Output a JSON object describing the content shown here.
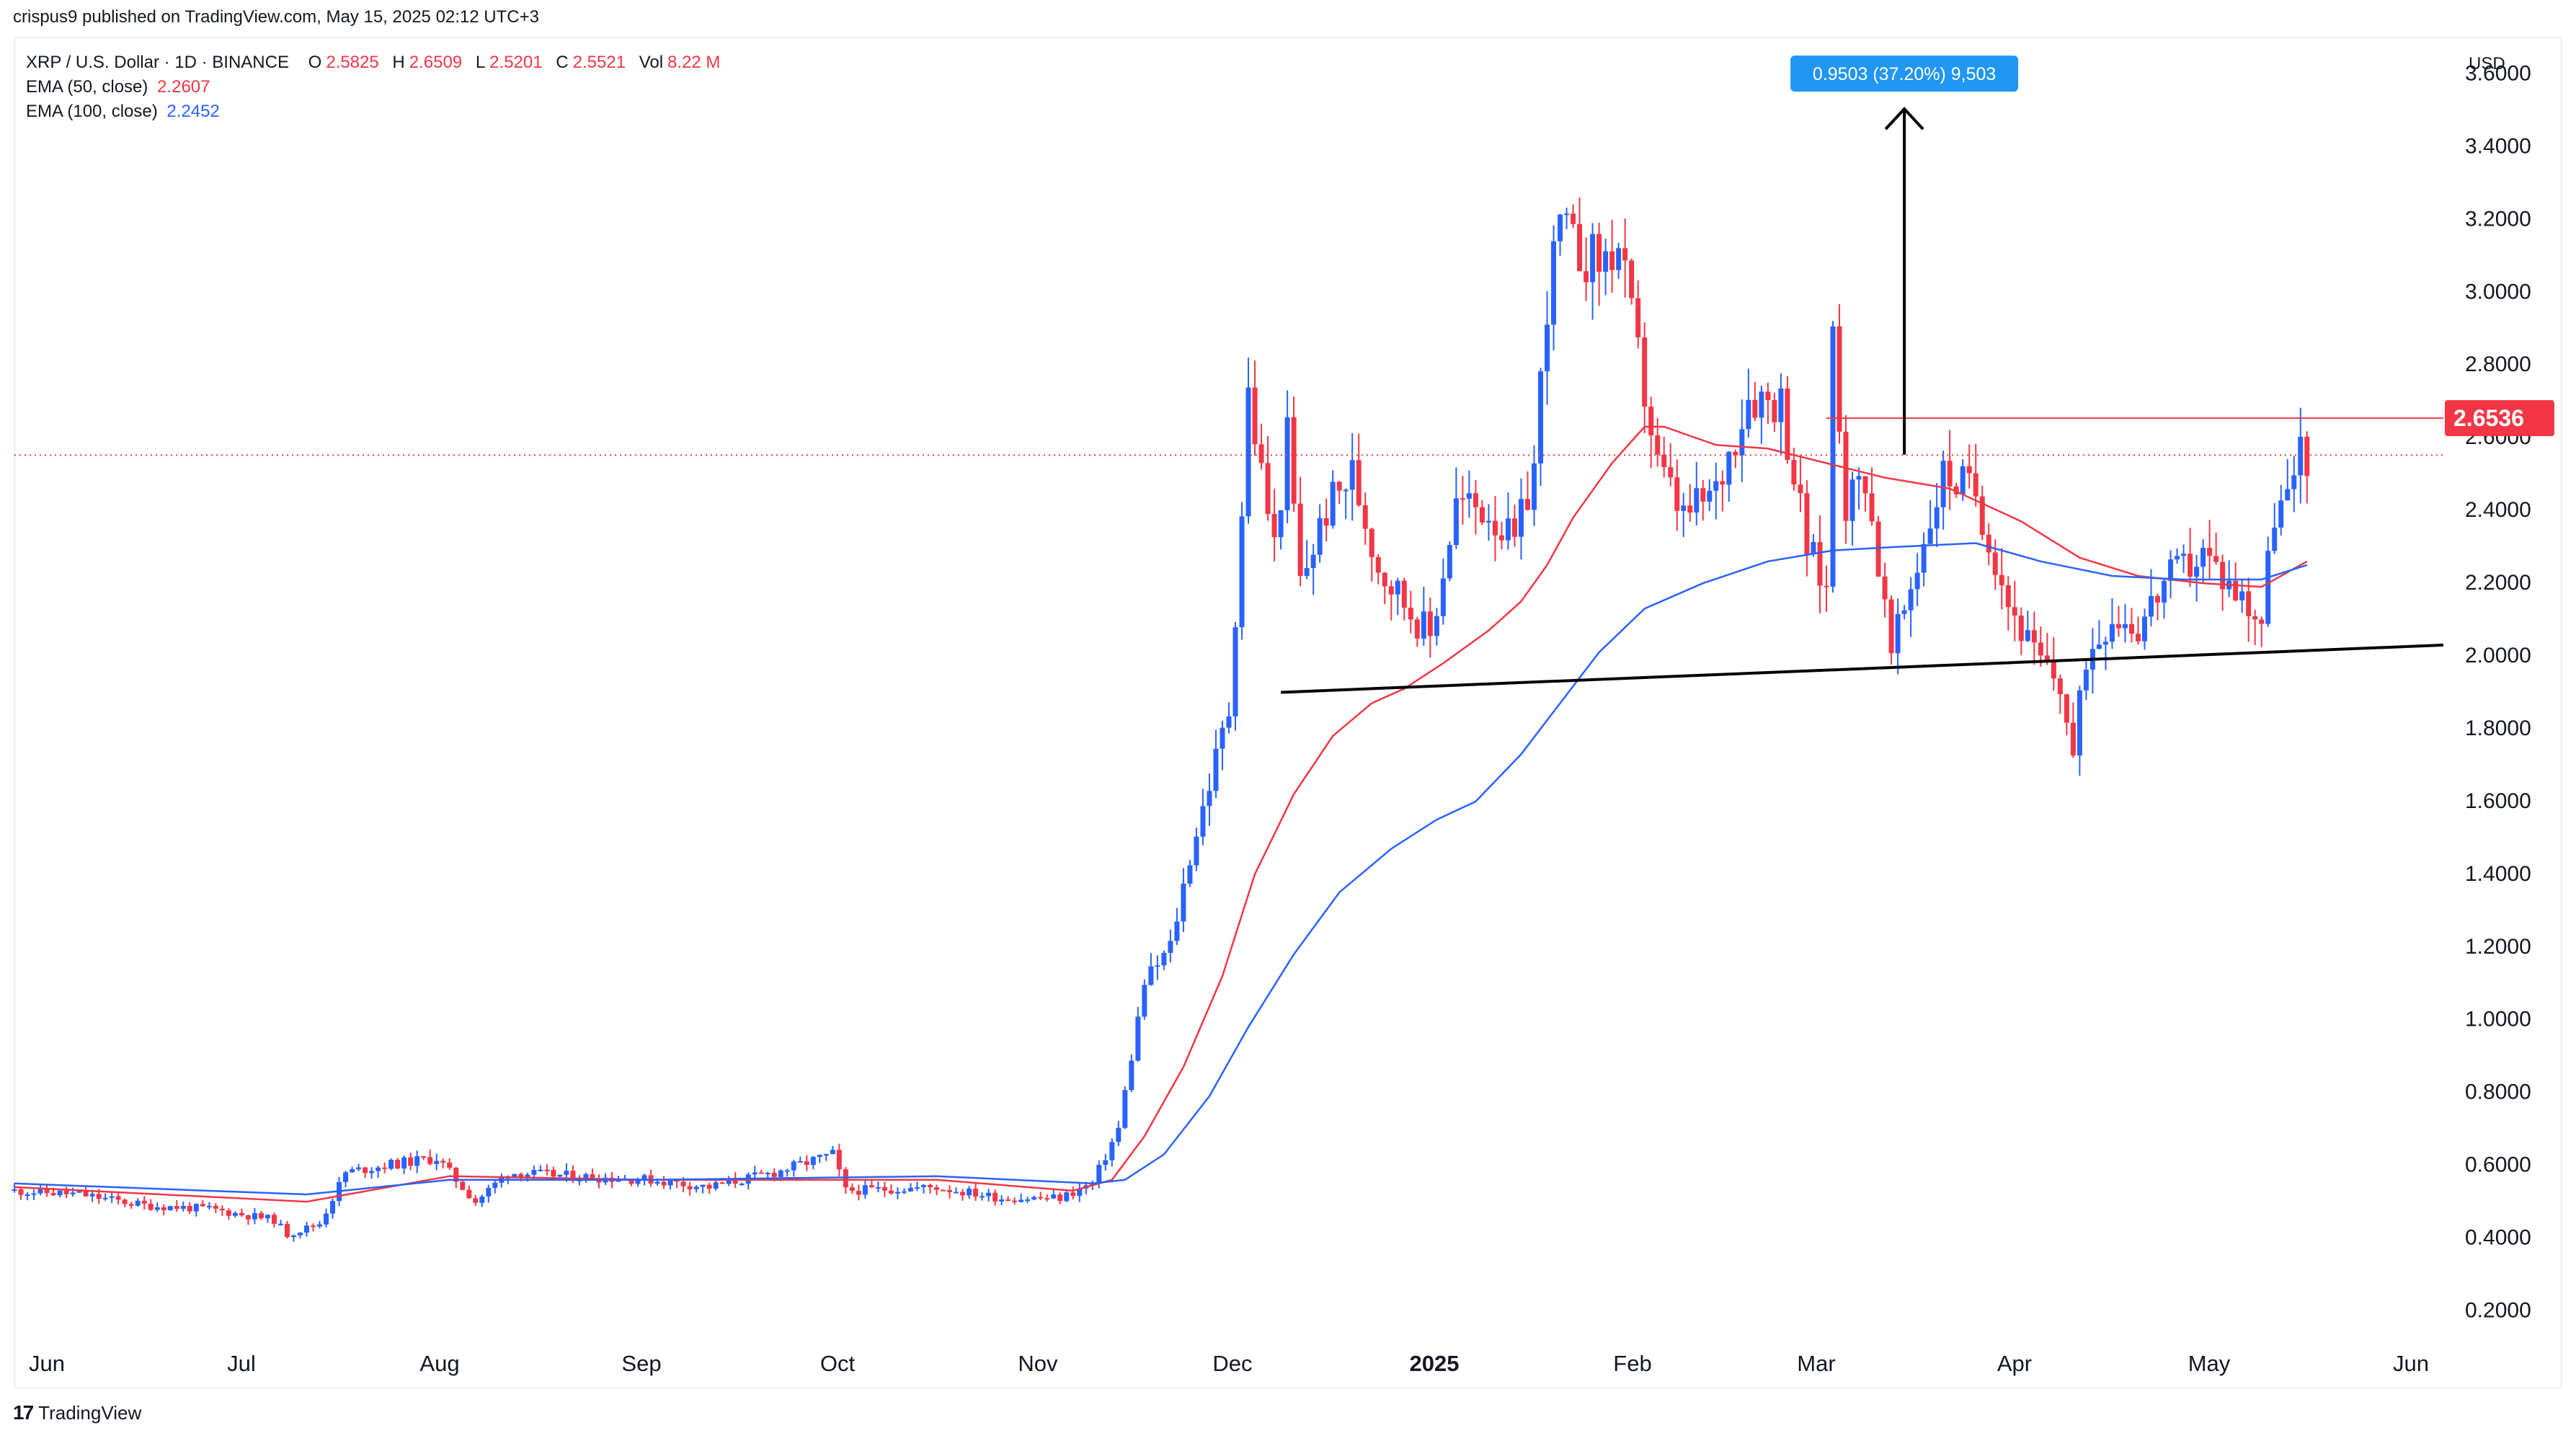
{
  "header": {
    "published": "crispus9 published on TradingView.com, May 15, 2025 02:12 UTC+3"
  },
  "legend": {
    "symbol": "XRP / U.S. Dollar · 1D · BINANCE",
    "o_label": "O",
    "o": "2.5825",
    "h_label": "H",
    "h": "2.6509",
    "l_label": "L",
    "l": "2.5201",
    "c_label": "C",
    "c": "2.5521",
    "vol_label": "Vol",
    "vol": "8.22 M",
    "ema50_label": "EMA (50, close)",
    "ema50": "2.2607",
    "ema100_label": "EMA (100, close)",
    "ema100": "2.2452"
  },
  "footer": {
    "brand": "TradingView",
    "logo": "17"
  },
  "colors": {
    "up": "#2962ff",
    "down": "#f23645",
    "ema50": "#f23645",
    "ema100": "#2962ff",
    "grid": "#ffffff",
    "resistance": "#f23645",
    "support": "#000000",
    "measure_bg": "#2196f3"
  },
  "chart_data": {
    "type": "candlestick",
    "title": "XRP / U.S. Dollar · 1D · BINANCE",
    "currency_label": "USD",
    "y_ticks": [
      "3.6000",
      "3.4000",
      "3.2000",
      "3.0000",
      "2.8000",
      "2.6000",
      "2.4000",
      "2.2000",
      "2.0000",
      "1.8000",
      "1.6000",
      "1.4000",
      "1.2000",
      "1.0000",
      "0.8000",
      "0.6000",
      "0.4000",
      "0.2000"
    ],
    "x_ticks": [
      "Jun",
      "Jul",
      "Aug",
      "Sep",
      "Oct",
      "Nov",
      "Dec",
      "2025",
      "Feb",
      "Mar",
      "Apr",
      "May",
      "Jun"
    ],
    "x_range": [
      "2024-05-26",
      "2025-06-04"
    ],
    "y_range": [
      0.09,
      3.7
    ],
    "last_price": 2.5521,
    "price_label": "2.6536",
    "resistance": {
      "value": 2.6536,
      "from": "2025-03-01",
      "to": "2025-06-04"
    },
    "support_line": {
      "from": [
        "2024-12-07",
        1.9
      ],
      "to": [
        "2025-06-04",
        2.03
      ]
    },
    "measure": {
      "label": "0.9503 (37.20%) 9,503",
      "date": "2025-03-13",
      "from": 2.5533,
      "to": 3.5036
    },
    "closes": [
      [
        "2024-05-26",
        0.53
      ],
      [
        "2024-06-05",
        0.52
      ],
      [
        "2024-06-15",
        0.49
      ],
      [
        "2024-06-25",
        0.48
      ],
      [
        "2024-07-05",
        0.45
      ],
      [
        "2024-07-07",
        0.41
      ],
      [
        "2024-07-12",
        0.44
      ],
      [
        "2024-07-16",
        0.58
      ],
      [
        "2024-07-22",
        0.6
      ],
      [
        "2024-07-30",
        0.62
      ],
      [
        "2024-08-05",
        0.5
      ],
      [
        "2024-08-10",
        0.58
      ],
      [
        "2024-08-20",
        0.57
      ],
      [
        "2024-09-01",
        0.56
      ],
      [
        "2024-09-10",
        0.54
      ],
      [
        "2024-09-20",
        0.58
      ],
      [
        "2024-09-29",
        0.63
      ],
      [
        "2024-10-01",
        0.53
      ],
      [
        "2024-10-15",
        0.54
      ],
      [
        "2024-10-25",
        0.51
      ],
      [
        "2024-11-03",
        0.51
      ],
      [
        "2024-11-08",
        0.55
      ],
      [
        "2024-11-12",
        0.7
      ],
      [
        "2024-11-16",
        1.1
      ],
      [
        "2024-11-20",
        1.2
      ],
      [
        "2024-11-23",
        1.45
      ],
      [
        "2024-11-29",
        1.85
      ],
      [
        "2024-12-01",
        2.4
      ],
      [
        "2024-12-02",
        2.72
      ],
      [
        "2024-12-04",
        2.5
      ],
      [
        "2024-12-06",
        2.3
      ],
      [
        "2024-12-08",
        2.6
      ],
      [
        "2024-12-10",
        2.2
      ],
      [
        "2024-12-14",
        2.4
      ],
      [
        "2024-12-18",
        2.5
      ],
      [
        "2024-12-22",
        2.25
      ],
      [
        "2024-12-26",
        2.15
      ],
      [
        "2024-12-30",
        2.05
      ],
      [
        "2025-01-03",
        2.42
      ],
      [
        "2025-01-08",
        2.4
      ],
      [
        "2025-01-12",
        2.3
      ],
      [
        "2025-01-15",
        2.52
      ],
      [
        "2025-01-17",
        2.98
      ],
      [
        "2025-01-19",
        3.18
      ],
      [
        "2025-01-21",
        3.12
      ],
      [
        "2025-01-25",
        3.08
      ],
      [
        "2025-01-28",
        3.12
      ],
      [
        "2025-02-01",
        2.72
      ],
      [
        "2025-02-03",
        2.52
      ],
      [
        "2025-02-07",
        2.38
      ],
      [
        "2025-02-12",
        2.45
      ],
      [
        "2025-02-17",
        2.72
      ],
      [
        "2025-02-22",
        2.7
      ],
      [
        "2025-02-26",
        2.3
      ],
      [
        "2025-03-01",
        2.18
      ],
      [
        "2025-03-02",
        2.92
      ],
      [
        "2025-03-04",
        2.42
      ],
      [
        "2025-03-07",
        2.5
      ],
      [
        "2025-03-11",
        2.0
      ],
      [
        "2025-03-16",
        2.32
      ],
      [
        "2025-03-19",
        2.5
      ],
      [
        "2025-03-24",
        2.45
      ],
      [
        "2025-03-29",
        2.15
      ],
      [
        "2025-04-02",
        2.0
      ],
      [
        "2025-04-06",
        1.92
      ],
      [
        "2025-04-08",
        1.72
      ],
      [
        "2025-04-10",
        2.0
      ],
      [
        "2025-04-14",
        2.12
      ],
      [
        "2025-04-18",
        2.08
      ],
      [
        "2025-04-22",
        2.2
      ],
      [
        "2025-04-28",
        2.28
      ],
      [
        "2025-05-03",
        2.18
      ],
      [
        "2025-05-07",
        2.1
      ],
      [
        "2025-05-09",
        2.4
      ],
      [
        "2025-05-12",
        2.45
      ],
      [
        "2025-05-13",
        2.6
      ],
      [
        "2025-05-14",
        2.5521
      ]
    ],
    "ema50": [
      [
        "2024-05-26",
        0.54
      ],
      [
        "2024-07-10",
        0.5
      ],
      [
        "2024-08-01",
        0.57
      ],
      [
        "2024-09-01",
        0.56
      ],
      [
        "2024-10-15",
        0.56
      ],
      [
        "2024-11-05",
        0.53
      ],
      [
        "2024-11-11",
        0.56
      ],
      [
        "2024-11-16",
        0.68
      ],
      [
        "2024-11-22",
        0.87
      ],
      [
        "2024-11-28",
        1.12
      ],
      [
        "2024-12-03",
        1.4
      ],
      [
        "2024-12-09",
        1.62
      ],
      [
        "2024-12-15",
        1.78
      ],
      [
        "2024-12-21",
        1.87
      ],
      [
        "2024-12-26",
        1.91
      ],
      [
        "2025-01-01",
        1.98
      ],
      [
        "2025-01-08",
        2.07
      ],
      [
        "2025-01-13",
        2.15
      ],
      [
        "2025-01-17",
        2.25
      ],
      [
        "2025-01-21",
        2.38
      ],
      [
        "2025-01-27",
        2.53
      ],
      [
        "2025-02-01",
        2.63
      ],
      [
        "2025-02-04",
        2.63
      ],
      [
        "2025-02-12",
        2.58
      ],
      [
        "2025-02-20",
        2.57
      ],
      [
        "2025-03-01",
        2.53
      ],
      [
        "2025-03-10",
        2.49
      ],
      [
        "2025-03-20",
        2.46
      ],
      [
        "2025-03-31",
        2.37
      ],
      [
        "2025-04-09",
        2.27
      ],
      [
        "2025-04-18",
        2.22
      ],
      [
        "2025-04-28",
        2.2
      ],
      [
        "2025-05-07",
        2.19
      ],
      [
        "2025-05-14",
        2.26
      ]
    ],
    "ema100": [
      [
        "2024-05-26",
        0.55
      ],
      [
        "2024-07-10",
        0.52
      ],
      [
        "2024-08-01",
        0.56
      ],
      [
        "2024-09-01",
        0.56
      ],
      [
        "2024-10-15",
        0.57
      ],
      [
        "2024-11-08",
        0.55
      ],
      [
        "2024-11-13",
        0.56
      ],
      [
        "2024-11-19",
        0.63
      ],
      [
        "2024-11-26",
        0.79
      ],
      [
        "2024-12-02",
        0.98
      ],
      [
        "2024-12-09",
        1.18
      ],
      [
        "2024-12-16",
        1.35
      ],
      [
        "2024-12-24",
        1.47
      ],
      [
        "2024-12-31",
        1.55
      ],
      [
        "2025-01-06",
        1.6
      ],
      [
        "2025-01-13",
        1.73
      ],
      [
        "2025-01-19",
        1.87
      ],
      [
        "2025-01-25",
        2.01
      ],
      [
        "2025-02-01",
        2.13
      ],
      [
        "2025-02-10",
        2.2
      ],
      [
        "2025-02-20",
        2.26
      ],
      [
        "2025-03-02",
        2.29
      ],
      [
        "2025-03-12",
        2.3
      ],
      [
        "2025-03-24",
        2.31
      ],
      [
        "2025-04-03",
        2.26
      ],
      [
        "2025-04-14",
        2.22
      ],
      [
        "2025-04-25",
        2.21
      ],
      [
        "2025-05-07",
        2.21
      ],
      [
        "2025-05-14",
        2.25
      ]
    ]
  }
}
